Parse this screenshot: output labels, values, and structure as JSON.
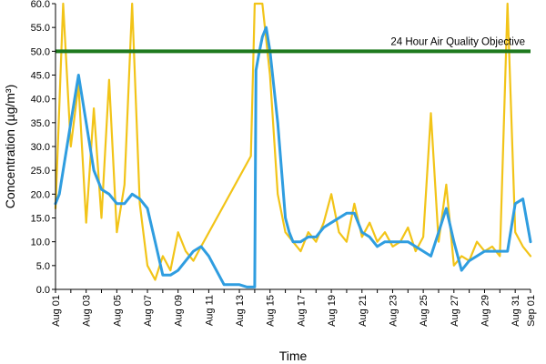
{
  "chart_data": {
    "type": "line",
    "xlabel": "Time",
    "ylabel": "Concentration (µg/m³)",
    "ylim": [
      0,
      60
    ],
    "y_ticks": [
      "0.0",
      "5.0",
      "10.0",
      "15.0",
      "20.0",
      "25.0",
      "30.0",
      "35.0",
      "40.0",
      "45.0",
      "50.0",
      "55.0",
      "60.0"
    ],
    "x_range": [
      "2015-08-01",
      "2015-09-01"
    ],
    "x_tick_labels": [
      "Aug 01",
      "Aug 03",
      "Aug 05",
      "Aug 07",
      "Aug 09",
      "Aug 11",
      "Aug 13",
      "Aug 15",
      "Aug 17",
      "Aug 19",
      "Aug 21",
      "Aug 23",
      "Aug 25",
      "Aug 27",
      "Aug 29",
      "Aug 31",
      "Sep 01"
    ],
    "grid": false,
    "reference_line": {
      "y": 50,
      "label": "24 Hour Air Quality Objective",
      "color": "#1f7a1f"
    },
    "series": [
      {
        "color": "#f2c418",
        "x": [
          "2015-08-01",
          "2015-08-01 12:00",
          "2015-08-02",
          "2015-08-02 12:00",
          "2015-08-03",
          "2015-08-03 12:00",
          "2015-08-04",
          "2015-08-04 12:00",
          "2015-08-05",
          "2015-08-05 12:00",
          "2015-08-06",
          "2015-08-06 12:00",
          "2015-08-07",
          "2015-08-07 12:00",
          "2015-08-08",
          "2015-08-08 12:00",
          "2015-08-09",
          "2015-08-09 12:00",
          "2015-08-10",
          "2015-08-10 12:00",
          "2015-08-13 18:00",
          "2015-08-14",
          "2015-08-14 12:00",
          "2015-08-15",
          "2015-08-15 12:00",
          "2015-08-16",
          "2015-08-16 12:00",
          "2015-08-17",
          "2015-08-17 12:00",
          "2015-08-18",
          "2015-08-18 12:00",
          "2015-08-19",
          "2015-08-19 12:00",
          "2015-08-20",
          "2015-08-20 12:00",
          "2015-08-21",
          "2015-08-21 12:00",
          "2015-08-22",
          "2015-08-22 12:00",
          "2015-08-23",
          "2015-08-23 12:00",
          "2015-08-24",
          "2015-08-24 12:00",
          "2015-08-25",
          "2015-08-25 12:00",
          "2015-08-26",
          "2015-08-26 12:00",
          "2015-08-27",
          "2015-08-27 12:00",
          "2015-08-28",
          "2015-08-28 12:00",
          "2015-08-29",
          "2015-08-29 12:00",
          "2015-08-30",
          "2015-08-30 12:00",
          "2015-08-31",
          "2015-08-31 12:00",
          "2015-09-01"
        ],
        "values": [
          17,
          60,
          30,
          43,
          14,
          38,
          15,
          44,
          12,
          22,
          60,
          18,
          5,
          2,
          7,
          4,
          12,
          8,
          6,
          9,
          28,
          60,
          60,
          45,
          20,
          12,
          10,
          8,
          12,
          10,
          14,
          20,
          12,
          10,
          18,
          11,
          14,
          10,
          12,
          9,
          10,
          13,
          8,
          11,
          37,
          10,
          22,
          5,
          7,
          6,
          10,
          8,
          9,
          7,
          60,
          12,
          9,
          7
        ]
      },
      {
        "color": "#2f9de0",
        "x": [
          "2015-08-01",
          "2015-08-01 06:00",
          "2015-08-01 18:00",
          "2015-08-02 06:00",
          "2015-08-02 12:00",
          "2015-08-03",
          "2015-08-03 12:00",
          "2015-08-04",
          "2015-08-04 12:00",
          "2015-08-05",
          "2015-08-05 12:00",
          "2015-08-06",
          "2015-08-06 12:00",
          "2015-08-07",
          "2015-08-07 12:00",
          "2015-08-08",
          "2015-08-08 12:00",
          "2015-08-09",
          "2015-08-09 12:00",
          "2015-08-10",
          "2015-08-10 12:00",
          "2015-08-11",
          "2015-08-12",
          "2015-08-13",
          "2015-08-13 12:00",
          "2015-08-14",
          "2015-08-14 02:00",
          "2015-08-14 06:00",
          "2015-08-14 12:00",
          "2015-08-14 18:00",
          "2015-08-15",
          "2015-08-15 12:00",
          "2015-08-16",
          "2015-08-16 06:00",
          "2015-08-16 12:00",
          "2015-08-17",
          "2015-08-17 12:00",
          "2015-08-18",
          "2015-08-18 12:00",
          "2015-08-19",
          "2015-08-19 12:00",
          "2015-08-20",
          "2015-08-20 12:00",
          "2015-08-21",
          "2015-08-21 12:00",
          "2015-08-22",
          "2015-08-22 12:00",
          "2015-08-23",
          "2015-08-23 12:00",
          "2015-08-24",
          "2015-08-24 12:00",
          "2015-08-25",
          "2015-08-25 12:00",
          "2015-08-26",
          "2015-08-26 12:00",
          "2015-08-27",
          "2015-08-27 12:00",
          "2015-08-28",
          "2015-08-28 12:00",
          "2015-08-29",
          "2015-08-29 12:00",
          "2015-08-30",
          "2015-08-30 12:00",
          "2015-08-31",
          "2015-08-31 12:00",
          "2015-09-01"
        ],
        "values": [
          18,
          20,
          30,
          40,
          45,
          35,
          25,
          21,
          20,
          18,
          18,
          20,
          19,
          17,
          10,
          3,
          3,
          4,
          6,
          8,
          9,
          7,
          1,
          1,
          0.5,
          0.5,
          46,
          49,
          53,
          55,
          50,
          35,
          15,
          12,
          10,
          10,
          11,
          11,
          13,
          14,
          15,
          16,
          16,
          12,
          11,
          9,
          10,
          10,
          10,
          10,
          9,
          8,
          7,
          12,
          17,
          10,
          4,
          6,
          7,
          8,
          8,
          8,
          8,
          18,
          19,
          10
        ]
      }
    ]
  }
}
